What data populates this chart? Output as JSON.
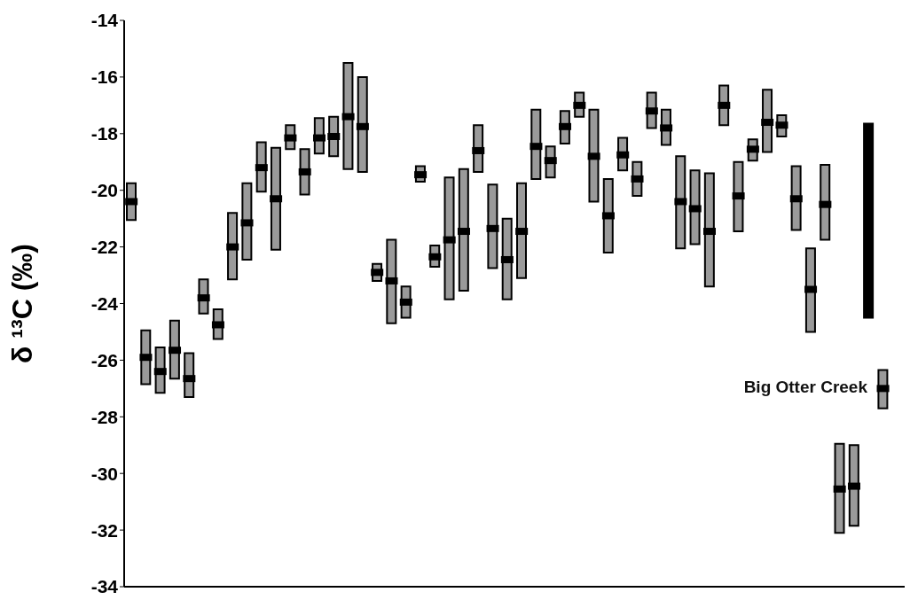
{
  "chart_data": {
    "type": "bar",
    "ylabel": "δ ¹³C (‰)",
    "categories": [
      null,
      null,
      null,
      null,
      null,
      null,
      null,
      null,
      null,
      null,
      null,
      null,
      null,
      null,
      null,
      null,
      null,
      null,
      null,
      null,
      null,
      null,
      null,
      null,
      null,
      null,
      null,
      null,
      null,
      null,
      null,
      null,
      null,
      null,
      null,
      null,
      null,
      null,
      null,
      null,
      null,
      null,
      null,
      null,
      null,
      null,
      null,
      null,
      null,
      null,
      null,
      null,
      null,
      null
    ],
    "series": [
      {
        "base": [
          -21.05,
          -26.85,
          -27.15,
          -26.65,
          -27.3,
          -24.35,
          -25.25,
          -23.15,
          -22.45,
          -20.05,
          -22.1,
          -18.55,
          -20.15,
          -18.7,
          -18.8,
          -19.25,
          -19.35,
          -23.2,
          -24.7,
          -24.5,
          -19.7,
          -22.7,
          -23.85,
          -23.55,
          -19.35,
          -22.75,
          -23.85,
          -23.1,
          -19.6,
          -19.55,
          -18.35,
          -17.4,
          -20.4,
          -22.2,
          -19.3,
          -20.2,
          -17.8,
          -18.4,
          -22.05,
          -21.9,
          -23.4,
          -17.7,
          -21.45,
          -18.95,
          -18.65,
          -18.1,
          -21.4,
          -25.0,
          -21.75,
          -32.1,
          -31.85,
          -24.5,
          -27.7,
          null
        ],
        "color": "#9a9a9a",
        "colors": [
          "#9a9a9a",
          "#9a9a9a",
          "#9a9a9a",
          "#9a9a9a",
          "#9a9a9a",
          "#9a9a9a",
          "#9a9a9a",
          "#9a9a9a",
          "#9a9a9a",
          "#9a9a9a",
          "#9a9a9a",
          "#9a9a9a",
          "#9a9a9a",
          "#9a9a9a",
          "#9a9a9a",
          "#9a9a9a",
          "#9a9a9a",
          "#9a9a9a",
          "#9a9a9a",
          "#9a9a9a",
          "#9a9a9a",
          "#9a9a9a",
          "#9a9a9a",
          "#9a9a9a",
          "#9a9a9a",
          "#9a9a9a",
          "#9a9a9a",
          "#9a9a9a",
          "#9a9a9a",
          "#9a9a9a",
          "#9a9a9a",
          "#9a9a9a",
          "#9a9a9a",
          "#9a9a9a",
          "#9a9a9a",
          "#9a9a9a",
          "#9a9a9a",
          "#9a9a9a",
          "#9a9a9a",
          "#9a9a9a",
          "#9a9a9a",
          "#9a9a9a",
          "#9a9a9a",
          "#9a9a9a",
          "#9a9a9a",
          "#9a9a9a",
          "#9a9a9a",
          "#9a9a9a",
          "#9a9a9a",
          "#9a9a9a",
          "#9a9a9a",
          "#000000",
          "#9a9a9a",
          "#9a9a9a"
        ],
        "values": [
          1.3,
          1.9,
          1.6,
          2.05,
          1.55,
          1.2,
          1.05,
          2.35,
          2.7,
          1.75,
          3.6,
          0.85,
          1.6,
          1.25,
          1.4,
          3.75,
          3.35,
          0.6,
          2.95,
          1.1,
          0.55,
          0.75,
          4.3,
          4.3,
          1.65,
          2.95,
          2.85,
          3.35,
          2.45,
          1.1,
          1.15,
          0.85,
          3.25,
          2.6,
          1.15,
          1.2,
          1.25,
          1.25,
          3.25,
          2.6,
          4.0,
          1.4,
          2.45,
          0.75,
          2.2,
          0.75,
          2.25,
          2.95,
          2.65,
          3.15,
          2.85,
          6.85,
          1.35,
          null
        ]
      },
      {
        "type": "scatter",
        "color": "#000000",
        "marker": "square",
        "values": [
          -20.4,
          -25.9,
          -26.4,
          -25.65,
          -26.65,
          -23.8,
          -24.75,
          -22.0,
          -21.15,
          -19.2,
          -20.3,
          -18.15,
          -19.35,
          -18.15,
          -18.1,
          -17.4,
          -17.75,
          -22.9,
          -23.2,
          -23.95,
          -19.45,
          -22.35,
          -21.75,
          -21.45,
          -18.6,
          -21.35,
          -22.45,
          -21.45,
          -18.45,
          -18.95,
          -17.75,
          -17.0,
          -18.8,
          -20.9,
          -18.75,
          -19.6,
          -17.2,
          -17.8,
          -20.4,
          -20.65,
          -21.45,
          -17.0,
          -20.2,
          -18.55,
          -17.6,
          -17.7,
          -20.3,
          -23.5,
          -20.5,
          -30.55,
          -30.45,
          null,
          -27.0,
          null
        ]
      }
    ],
    "ylim": [
      -34,
      -14
    ],
    "yticks": [
      -34,
      -32,
      -30,
      -28,
      -26,
      -24,
      -22,
      -20,
      -18,
      -16,
      -14
    ],
    "tick_labels": "y",
    "annotations": [
      "Big Otter Creek"
    ]
  }
}
